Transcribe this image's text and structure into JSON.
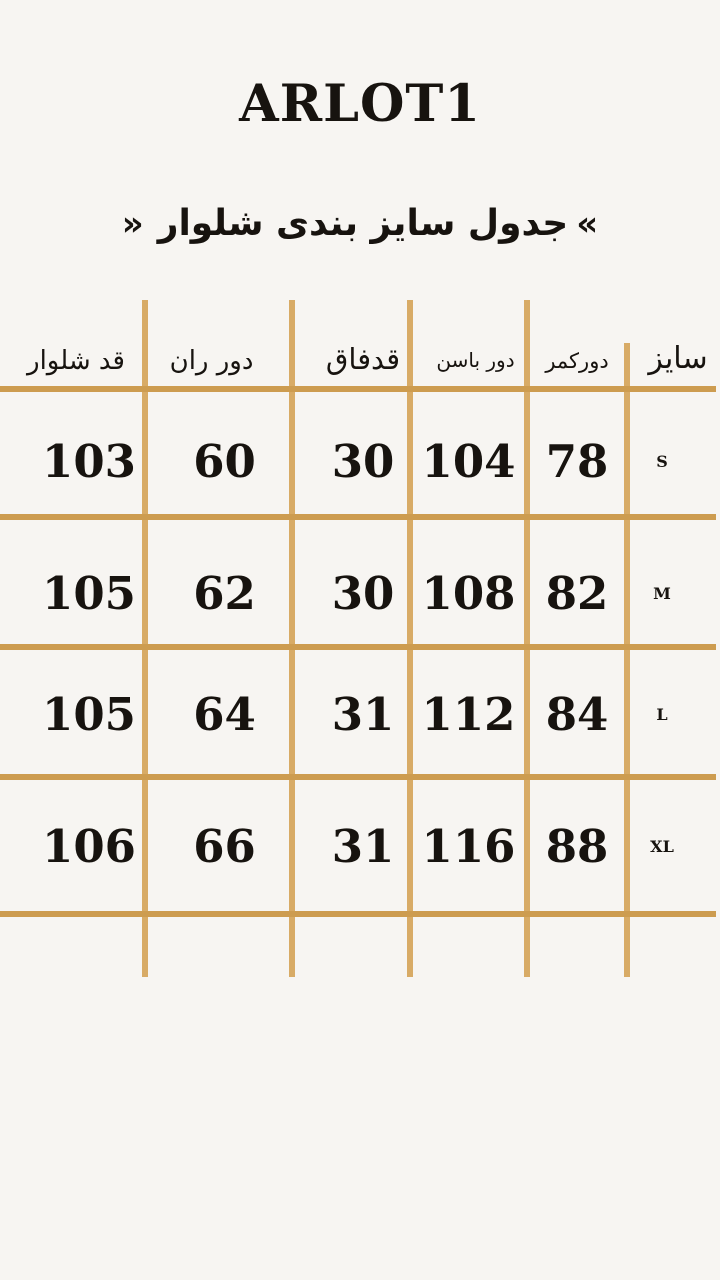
{
  "title": "ARLOT1",
  "subtitle": {
    "quote_open": "«",
    "text": "جدول سایز بندی شلوار",
    "quote_close": "»"
  },
  "colors": {
    "background": "#F7F5F2",
    "grid_line_vertical": "#D8AB66",
    "grid_line_horizontal": "#CD9C50",
    "text": "#17130F"
  },
  "table": {
    "columns": [
      {
        "key": "size",
        "label": "سایز"
      },
      {
        "key": "waist",
        "label": "دورکمر"
      },
      {
        "key": "hip",
        "label": "دور باسن"
      },
      {
        "key": "rise",
        "label": "قدفاق"
      },
      {
        "key": "thigh",
        "label": "دور ران"
      },
      {
        "key": "length",
        "label": "قد شلوار"
      }
    ],
    "rows": [
      {
        "size": "S",
        "waist": "78",
        "hip": "104",
        "rise": "30",
        "thigh": "60",
        "length": "103"
      },
      {
        "size": "M",
        "waist": "82",
        "hip": "108",
        "rise": "30",
        "thigh": "62",
        "length": "105"
      },
      {
        "size": "L",
        "waist": "84",
        "hip": "112",
        "rise": "31",
        "thigh": "64",
        "length": "105"
      },
      {
        "size": "XL",
        "waist": "88",
        "hip": "116",
        "rise": "31",
        "thigh": "66",
        "length": "106"
      }
    ]
  }
}
